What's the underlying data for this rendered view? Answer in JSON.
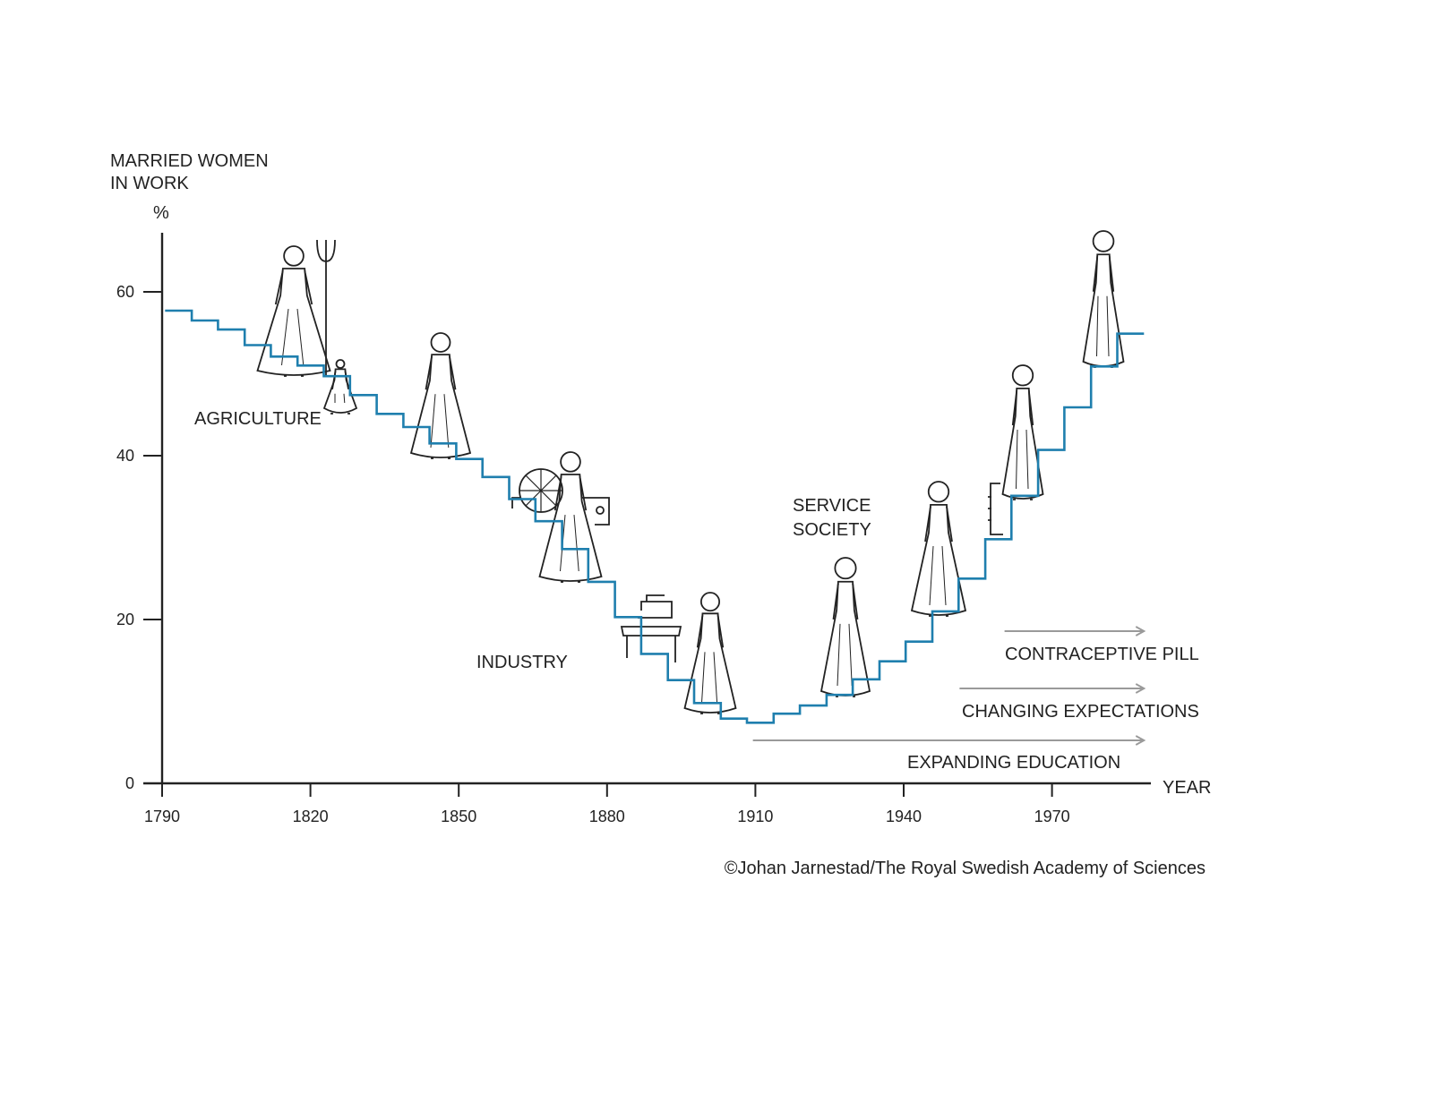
{
  "chart_data": {
    "type": "line",
    "step": true,
    "ylabel": [
      "MARRIED WOMEN",
      "IN WORK"
    ],
    "yunit": "%",
    "xlabel": "YEAR",
    "ylim": [
      0,
      60
    ],
    "xlim": [
      1790,
      1990
    ],
    "yticks": [
      "0",
      "20",
      "40",
      "60"
    ],
    "xticks": [
      "1790",
      "1820",
      "1850",
      "1880",
      "1910",
      "1940",
      "1970"
    ],
    "grid": false,
    "line_color": "#1f7fae",
    "x": [
      1790.6,
      1796,
      1801.3,
      1806.7,
      1812,
      1817.4,
      1822.7,
      1828,
      1833.4,
      1838.8,
      1844.1,
      1849.5,
      1854.8,
      1860.2,
      1865.5,
      1870.9,
      1876.2,
      1881.6,
      1886.9,
      1892.3,
      1897.6,
      1903,
      1908.3,
      1913.7,
      1919,
      1924.4,
      1929.7,
      1935.1,
      1940.4,
      1945.8,
      1951.1,
      1956.5,
      1961.8,
      1967.2,
      1972.5,
      1977.9,
      1983.2
    ],
    "x_end": 1988.6,
    "values": [
      57.7,
      56.5,
      55.4,
      53.5,
      52.1,
      51.0,
      49.7,
      47.4,
      45.1,
      43.5,
      41.5,
      39.6,
      37.4,
      34.7,
      32.0,
      28.6,
      24.6,
      20.3,
      15.8,
      12.6,
      9.8,
      7.9,
      7.4,
      8.5,
      9.5,
      10.8,
      12.7,
      14.9,
      17.3,
      21.0,
      25.0,
      29.8,
      35.1,
      40.7,
      45.9,
      50.9,
      54.9
    ],
    "era_labels": [
      "AGRICULTURE",
      "INDUSTRY",
      "SERVICE",
      "SOCIETY"
    ],
    "arrows": [
      {
        "label": "CONTRACEPTIVE PILL",
        "from": 1960.4,
        "to": 1988.6
      },
      {
        "label": "CHANGING EXPECTATIONS",
        "from": 1951.3,
        "to": 1988.6
      },
      {
        "label": "EXPANDING EDUCATION",
        "from": 1909.5,
        "to": 1988.6
      }
    ],
    "arrow_color": "#9a9a9a",
    "credit": "©Johan Jarnestad/The Royal Swedish Academy of Sciences"
  }
}
